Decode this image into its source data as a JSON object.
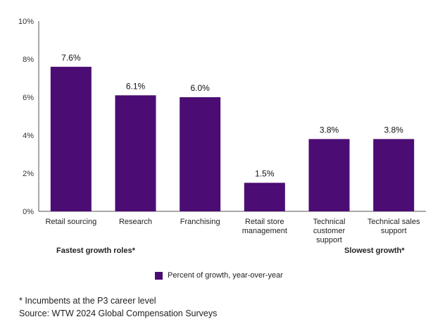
{
  "chart_data": {
    "type": "bar",
    "categories": [
      [
        "Retail sourcing"
      ],
      [
        "Research"
      ],
      [
        "Franchising"
      ],
      [
        "Retail store",
        "management"
      ],
      [
        "Technical",
        "customer",
        "support"
      ],
      [
        "Technical sales",
        "support"
      ]
    ],
    "values": [
      7.6,
      6.1,
      6.0,
      1.5,
      3.8,
      3.8
    ],
    "data_labels": [
      "7.6%",
      "6.1%",
      "6.0%",
      "1.5%",
      "3.8%",
      "3.8%"
    ],
    "y_ticks": [
      "0%",
      "2%",
      "4%",
      "6%",
      "8%",
      "10%"
    ],
    "ylim": [
      0,
      10
    ],
    "title": "",
    "xlabel": "",
    "ylabel": "",
    "grid": false,
    "bar_color": "#4b0c73",
    "legend": "Percent of growth, year-over-year"
  },
  "annotations": {
    "left_group": "Fastest growth roles*",
    "right_group": "Slowest growth*"
  },
  "footnotes": {
    "note": "* Incumbents at the P3 career level",
    "source": "Source: WTW 2024 Global Compensation Surveys"
  }
}
